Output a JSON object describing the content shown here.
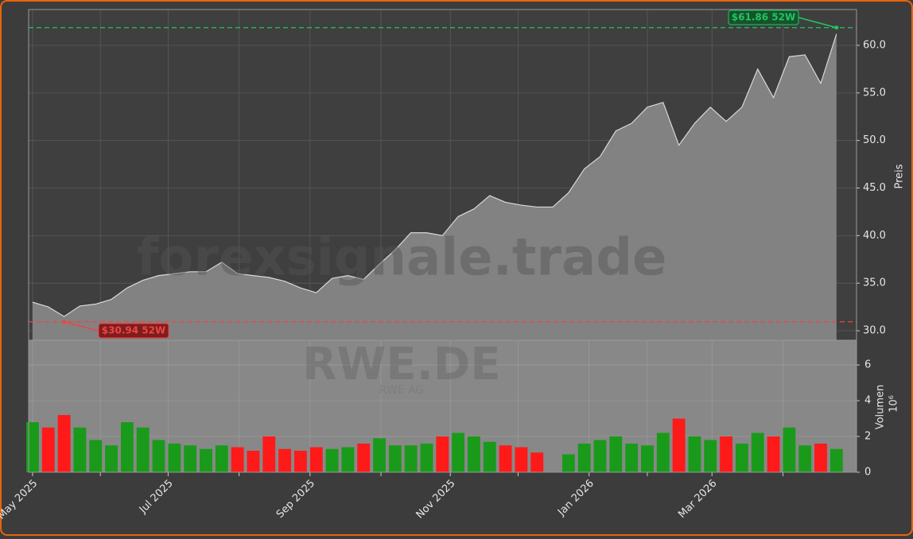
{
  "chart_data": {
    "type": "area",
    "watermark": "forexsignale.trade",
    "ticker": "RWE.DE",
    "company": "RWE AG",
    "ylabel": "Preis",
    "categories": [
      null,
      null,
      null,
      null,
      null,
      null,
      null,
      null,
      null,
      null,
      null,
      null,
      null,
      null,
      null,
      null,
      null,
      null,
      null,
      null,
      null,
      null,
      null,
      null,
      null,
      null,
      null,
      null,
      null,
      null,
      null,
      null,
      null,
      null,
      null,
      null,
      null,
      null,
      null,
      null,
      null,
      null,
      null,
      null,
      null,
      null,
      null,
      null,
      null,
      null,
      null,
      null
    ],
    "values": [
      33.0,
      32.5,
      31.5,
      32.6,
      32.8,
      33.3,
      34.5,
      35.3,
      35.8,
      36.0,
      36.2,
      36.2,
      37.2,
      36.0,
      35.8,
      35.6,
      35.2,
      34.5,
      34.0,
      35.5,
      35.8,
      35.4,
      37.0,
      38.5,
      40.3,
      40.3,
      40.0,
      42.0,
      42.8,
      44.2,
      43.5,
      43.2,
      43.0,
      43.0,
      44.5,
      47.0,
      48.3,
      51.0,
      51.8,
      53.5,
      54.0,
      49.5,
      51.8,
      53.5,
      52.0,
      53.5,
      57.5,
      54.5,
      58.8,
      59.0,
      56.0,
      61.2
    ],
    "volume": [
      2.8,
      2.5,
      3.2,
      2.5,
      1.8,
      1.5,
      2.8,
      2.5,
      1.8,
      1.6,
      1.5,
      1.3,
      1.5,
      1.4,
      1.2,
      2.0,
      1.3,
      1.2,
      1.4,
      1.3,
      1.4,
      1.6,
      1.9,
      1.5,
      1.5,
      1.6,
      2.0,
      2.2,
      2.0,
      1.7,
      1.5,
      1.4,
      1.1,
      0,
      1.0,
      1.6,
      1.8,
      2.0,
      1.6,
      1.5,
      2.2,
      3.0,
      2.0,
      1.8,
      2.0,
      1.6,
      2.2,
      2.0,
      2.5,
      1.5,
      1.6,
      1.3
    ],
    "area_color": "#828282",
    "line_color": "#d8d8d8",
    "up_color": "#1a9a1a",
    "down_color": "#ff1a1a",
    "xlim": [
      -0.25,
      52.27
    ],
    "xticks": [
      {
        "value": 0,
        "label": "May 2025"
      },
      {
        "value": 8.6,
        "label": "Jul 2025"
      },
      {
        "value": 17.6,
        "label": "Sep 2025"
      },
      {
        "value": 26.5,
        "label": "Nov 2025"
      },
      {
        "value": 35.3,
        "label": "Jan 2026"
      },
      {
        "value": 43.1,
        "label": "Mar 2026"
      }
    ],
    "xticks_minor": [
      4.3,
      13.1,
      22.1,
      30.8,
      39.0,
      47.6
    ],
    "ylim": [
      29.0,
      63.76
    ],
    "yticks": [
      {
        "value": 30,
        "label": "30.0"
      },
      {
        "value": 35,
        "label": "35.0"
      },
      {
        "value": 40,
        "label": "40.0"
      },
      {
        "value": 45,
        "label": "45.0"
      },
      {
        "value": 50,
        "label": "50.0"
      },
      {
        "value": 55,
        "label": "55.0"
      },
      {
        "value": 60,
        "label": "60.0"
      }
    ],
    "volume_ylabel": "Volumen",
    "volume_unit": "10⁶",
    "volume_ylim": [
      0,
      7.38
    ],
    "volume_yticks": [
      0,
      2,
      4,
      6
    ],
    "high": {
      "value": 61.86,
      "label": "$61.86 52W",
      "color": "#22c55e"
    },
    "low": {
      "value": 30.94,
      "label": "$30.94 52W",
      "color": "#ef4444"
    },
    "grid": true
  }
}
